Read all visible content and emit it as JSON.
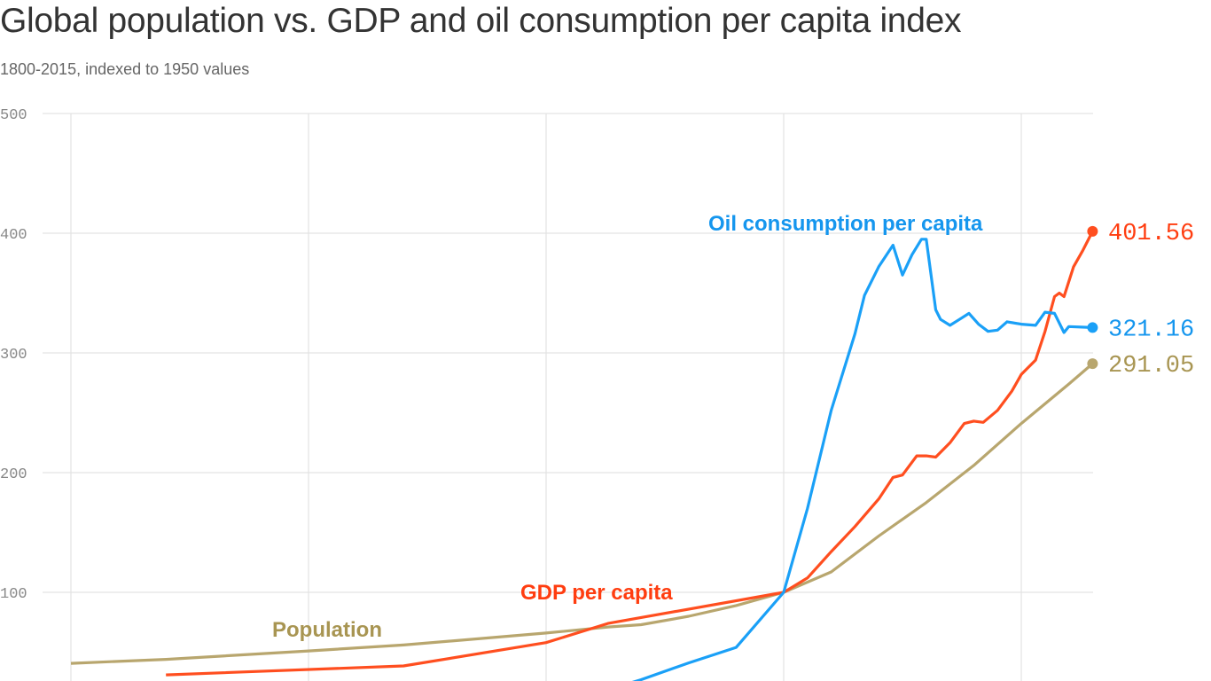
{
  "chart_data": {
    "type": "line",
    "title": "Global population vs. GDP and oil consumption per capita index",
    "subtitle": "1800-2015, indexed to 1950 values",
    "xlim": [
      1800,
      2015
    ],
    "ylim": [
      26,
      500
    ],
    "yticks": [
      100,
      200,
      300,
      400,
      500
    ],
    "ytick_labels": [
      "100",
      "200",
      "300",
      "400",
      "500"
    ],
    "xgrid_years": [
      1800,
      1850,
      1900,
      1950,
      2000
    ],
    "grid": true,
    "series": [
      {
        "name": "Population",
        "color": "#b8a66e",
        "label_color": "#a89552",
        "end_label": "291.05",
        "points": [
          [
            1800,
            40.7
          ],
          [
            1820,
            44
          ],
          [
            1850,
            51
          ],
          [
            1870,
            56
          ],
          [
            1900,
            66
          ],
          [
            1913,
            71
          ],
          [
            1920,
            73
          ],
          [
            1930,
            80
          ],
          [
            1940,
            89
          ],
          [
            1950,
            100
          ],
          [
            1960,
            117
          ],
          [
            1970,
            147
          ],
          [
            1980,
            175
          ],
          [
            1990,
            206
          ],
          [
            2000,
            241
          ],
          [
            2010,
            274
          ],
          [
            2015,
            291.05
          ]
        ]
      },
      {
        "name": "GDP per capita",
        "color": "#ff4e1f",
        "label_color": "#ff3d10",
        "end_label": "401.56",
        "points": [
          [
            1820,
            31
          ],
          [
            1870,
            38.5
          ],
          [
            1900,
            58
          ],
          [
            1913,
            74
          ],
          [
            1950,
            100
          ],
          [
            1955,
            112
          ],
          [
            1960,
            134
          ],
          [
            1965,
            155
          ],
          [
            1970,
            178
          ],
          [
            1973,
            196
          ],
          [
            1975,
            198
          ],
          [
            1978,
            214
          ],
          [
            1980,
            214
          ],
          [
            1982,
            213
          ],
          [
            1985,
            225
          ],
          [
            1988,
            241
          ],
          [
            1990,
            243
          ],
          [
            1992,
            242
          ],
          [
            1995,
            252
          ],
          [
            1998,
            268
          ],
          [
            2000,
            282
          ],
          [
            2003,
            294
          ],
          [
            2005,
            318
          ],
          [
            2007,
            347
          ],
          [
            2008,
            350
          ],
          [
            2009,
            347
          ],
          [
            2011,
            372
          ],
          [
            2013,
            386
          ],
          [
            2015,
            401.56
          ]
        ]
      },
      {
        "name": "Oil consumption per capita",
        "color": "#1aa0f7",
        "label_color": "#1596ee",
        "end_label": "321.16",
        "points": [
          [
            1910,
            15
          ],
          [
            1920,
            27
          ],
          [
            1930,
            41
          ],
          [
            1940,
            54
          ],
          [
            1950,
            100
          ],
          [
            1955,
            170
          ],
          [
            1960,
            252
          ],
          [
            1965,
            316
          ],
          [
            1967,
            348
          ],
          [
            1970,
            372
          ],
          [
            1973,
            390
          ],
          [
            1975,
            365
          ],
          [
            1977,
            382
          ],
          [
            1979,
            395
          ],
          [
            1980,
            395
          ],
          [
            1982,
            336
          ],
          [
            1983,
            328
          ],
          [
            1985,
            323
          ],
          [
            1987,
            328
          ],
          [
            1989,
            333
          ],
          [
            1991,
            324
          ],
          [
            1993,
            318
          ],
          [
            1995,
            319
          ],
          [
            1997,
            326
          ],
          [
            2000,
            324
          ],
          [
            2003,
            323
          ],
          [
            2005,
            334
          ],
          [
            2007,
            333
          ],
          [
            2009,
            317
          ],
          [
            2010,
            322
          ],
          [
            2015,
            321.16
          ]
        ]
      }
    ]
  }
}
